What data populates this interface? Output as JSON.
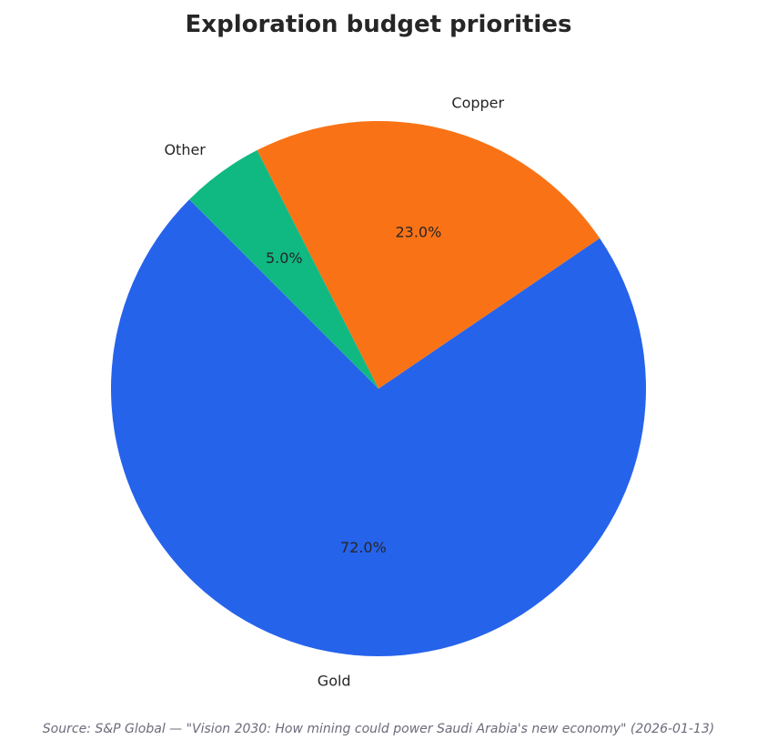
{
  "chart_data": {
    "type": "pie",
    "title": "Exploration budget priorities",
    "categories": [
      "Gold",
      "Copper",
      "Other"
    ],
    "values": [
      72.0,
      23.0,
      5.0
    ],
    "value_labels": [
      "72.0%",
      "23.0%",
      "5.0%"
    ],
    "colors": [
      "#2563eb",
      "#f97316",
      "#10b981"
    ],
    "legend": "none",
    "start_angle_deg": 135,
    "direction": "counterclockwise"
  },
  "source": "Source: S&P Global — \"Vision 2030: How mining could power Saudi Arabia's new economy\" (2026-01-13)"
}
